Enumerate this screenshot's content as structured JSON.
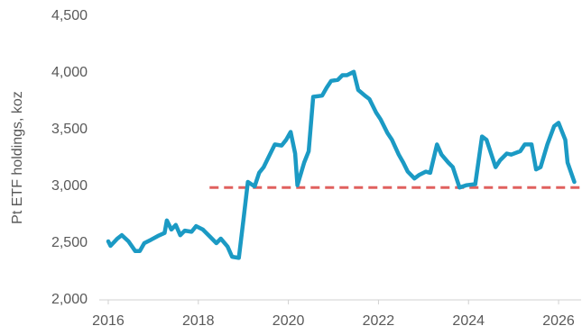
{
  "chart_data": {
    "type": "line",
    "y_label": "Pt ETF holdings, koz",
    "x": [
      2016.0,
      2016.05,
      2016.2,
      2016.3,
      2016.45,
      2016.6,
      2016.7,
      2016.8,
      2016.95,
      2017.1,
      2017.25,
      2017.3,
      2017.4,
      2017.5,
      2017.6,
      2017.7,
      2017.85,
      2017.95,
      2018.1,
      2018.25,
      2018.4,
      2018.5,
      2018.65,
      2018.75,
      2018.9,
      2019.0,
      2019.1,
      2019.25,
      2019.35,
      2019.45,
      2019.6,
      2019.7,
      2019.85,
      2019.95,
      2020.05,
      2020.15,
      2020.2,
      2020.35,
      2020.45,
      2020.55,
      2020.75,
      2020.85,
      2020.95,
      2021.1,
      2021.2,
      2021.3,
      2021.45,
      2021.55,
      2021.7,
      2021.8,
      2021.95,
      2022.05,
      2022.2,
      2022.3,
      2022.45,
      2022.55,
      2022.65,
      2022.8,
      2022.9,
      2023.05,
      2023.15,
      2023.3,
      2023.4,
      2023.55,
      2023.65,
      2023.8,
      2023.95,
      2024.15,
      2024.3,
      2024.4,
      2024.6,
      2024.7,
      2024.85,
      2024.95,
      2025.15,
      2025.25,
      2025.4,
      2025.5,
      2025.6,
      2025.75,
      2025.9,
      2026.0,
      2026.15,
      2026.2,
      2026.35
    ],
    "values": [
      2516,
      2476,
      2540,
      2571,
      2516,
      2430,
      2430,
      2500,
      2530,
      2563,
      2590,
      2700,
      2620,
      2660,
      2570,
      2610,
      2600,
      2650,
      2620,
      2560,
      2500,
      2540,
      2470,
      2380,
      2370,
      2700,
      3040,
      3000,
      3120,
      3170,
      3290,
      3370,
      3360,
      3410,
      3480,
      3290,
      3010,
      3210,
      3310,
      3790,
      3800,
      3870,
      3930,
      3940,
      3980,
      3980,
      4010,
      3850,
      3800,
      3770,
      3650,
      3590,
      3470,
      3410,
      3280,
      3210,
      3130,
      3070,
      3100,
      3130,
      3120,
      3370,
      3280,
      3210,
      3170,
      2990,
      3010,
      3020,
      3440,
      3410,
      3170,
      3230,
      3290,
      3280,
      3310,
      3370,
      3370,
      3150,
      3170,
      3370,
      3530,
      3560,
      3410,
      3210,
      3040
    ],
    "color": "#1b9ac4",
    "reference_line": {
      "value": 2990,
      "x_start": 2018.25,
      "x_end": 2026.5,
      "color": "#e0605e",
      "dashed": true
    },
    "xlim": [
      2015.8,
      2026.5
    ],
    "xticks": [
      2016,
      2018,
      2020,
      2022,
      2024,
      2026
    ],
    "ylim": [
      2000,
      4500
    ],
    "yticks": [
      {
        "value": 2000,
        "label": "2,000"
      },
      {
        "value": 2500,
        "label": "2,500"
      },
      {
        "value": 3000,
        "label": "3,000"
      },
      {
        "value": 3500,
        "label": "3,500"
      },
      {
        "value": 4000,
        "label": "4,000"
      },
      {
        "value": 4500,
        "label": "4,500"
      }
    ],
    "grid": false
  }
}
